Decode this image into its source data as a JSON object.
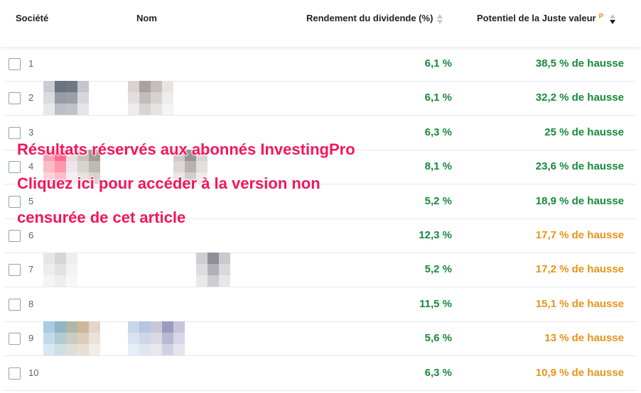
{
  "header": {
    "societe": "Société",
    "nom": "Nom",
    "dividend_yield": "Rendement du dividende (%)",
    "fair_value": "Potentiel de la Juste valeur",
    "pro_icon": "P"
  },
  "colors": {
    "green": "#168a3a",
    "orange": "#e8941a",
    "overlay": "#f5155a"
  },
  "rows": [
    {
      "rank": "1",
      "yield": "6,1 %",
      "fair_value": "38,5 % de hausse",
      "fv_color": "green"
    },
    {
      "rank": "2",
      "yield": "6,1 %",
      "fair_value": "32,2 % de hausse",
      "fv_color": "green"
    },
    {
      "rank": "3",
      "yield": "6,3 %",
      "fair_value": "25 % de hausse",
      "fv_color": "green"
    },
    {
      "rank": "4",
      "yield": "8,1 %",
      "fair_value": "23,6 % de hausse",
      "fv_color": "green"
    },
    {
      "rank": "5",
      "yield": "5,2 %",
      "fair_value": "18,9 % de hausse",
      "fv_color": "green"
    },
    {
      "rank": "6",
      "yield": "12,3 %",
      "fair_value": "17,7 % de hausse",
      "fv_color": "orange"
    },
    {
      "rank": "7",
      "yield": "5,2 %",
      "fair_value": "17,2 % de hausse",
      "fv_color": "orange"
    },
    {
      "rank": "8",
      "yield": "11,5 %",
      "fair_value": "15,1 % de hausse",
      "fv_color": "orange"
    },
    {
      "rank": "9",
      "yield": "5,6 %",
      "fair_value": "13 % de hausse",
      "fv_color": "orange"
    },
    {
      "rank": "10",
      "yield": "6,3 %",
      "fair_value": "10,9 % de hausse",
      "fv_color": "orange"
    }
  ],
  "overlay": {
    "line1": "Résultats réservés aux abonnés InvestingPro",
    "line2": "Cliquez ici pour accéder à la version non",
    "line3": "censurée de cet article"
  }
}
